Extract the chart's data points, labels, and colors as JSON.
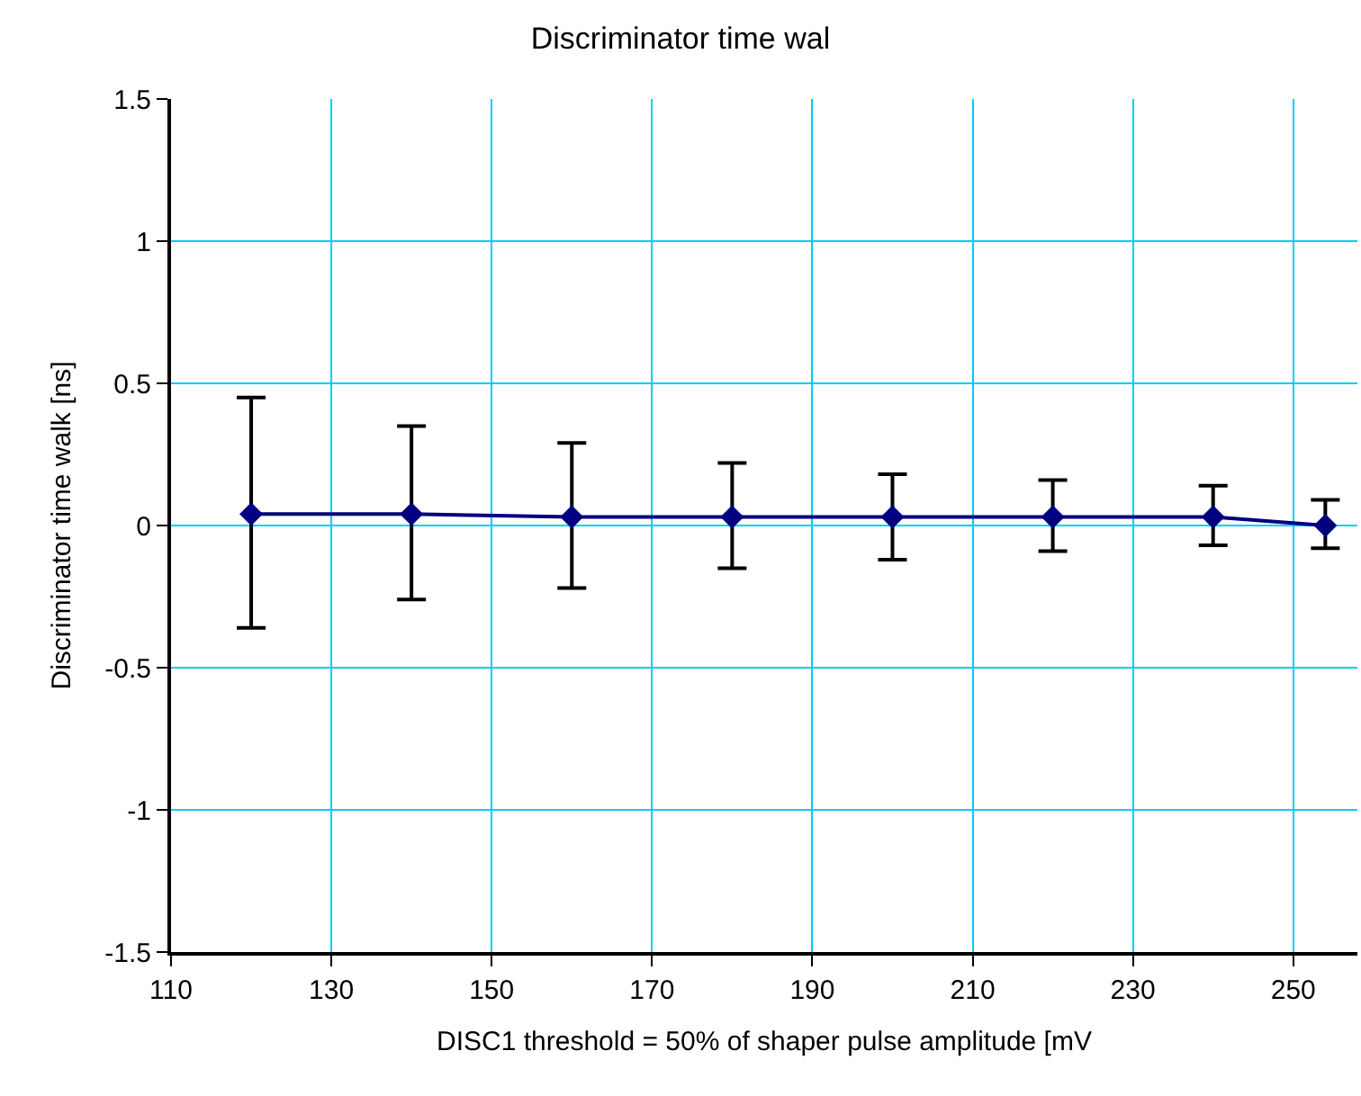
{
  "chart_data": {
    "type": "line",
    "title": "Discriminator time wal",
    "xlabel": "DISC1 threshold = 50% of shaper pulse amplitude [mV",
    "ylabel": "Discriminator time walk [ns]",
    "x": [
      120,
      140,
      160,
      180,
      200,
      220,
      240,
      254
    ],
    "series": [
      {
        "color": "#000080",
        "values": [
          0.04,
          0.04,
          0.03,
          0.03,
          0.03,
          0.03,
          0.03,
          0
        ],
        "errors": [
          [
            -0.36,
            0.45
          ],
          [
            -0.26,
            0.35
          ],
          [
            -0.22,
            0.29
          ],
          [
            -0.15,
            0.22
          ],
          [
            -0.12,
            0.18
          ],
          [
            -0.09,
            0.16
          ],
          [
            -0.07,
            0.14
          ],
          [
            -0.08,
            0.09
          ]
        ]
      }
    ],
    "xlim": [
      110,
      258
    ],
    "xticks": [
      110,
      130,
      150,
      170,
      190,
      210,
      230,
      250
    ],
    "ylim": [
      -1.5,
      1.5
    ],
    "yticks": [
      -1.5,
      -1,
      -0.5,
      0,
      0.5,
      1,
      1.5
    ],
    "grid": true,
    "marker": "diamond",
    "line_style": "solid"
  }
}
